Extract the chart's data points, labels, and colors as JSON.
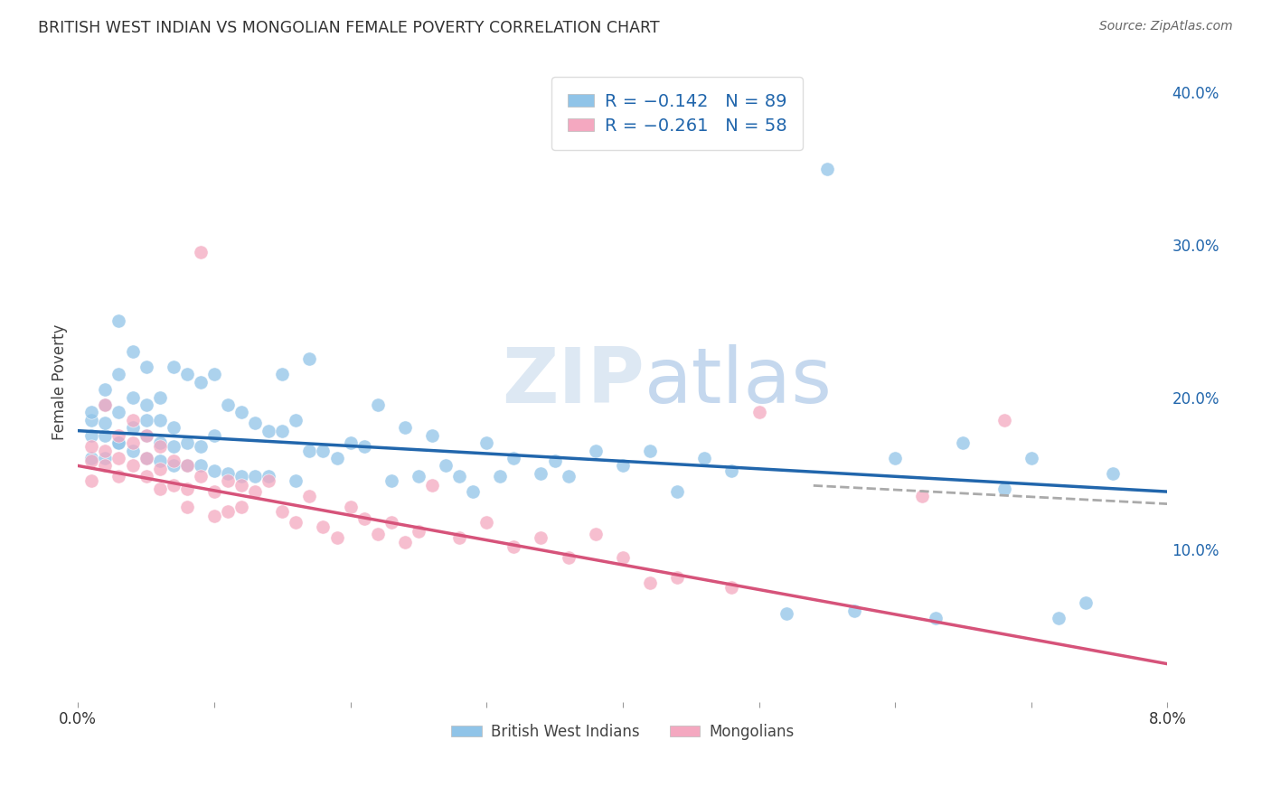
{
  "title": "BRITISH WEST INDIAN VS MONGOLIAN FEMALE POVERTY CORRELATION CHART",
  "source": "Source: ZipAtlas.com",
  "ylabel": "Female Poverty",
  "xlim": [
    0.0,
    0.08
  ],
  "ylim": [
    0.0,
    0.42
  ],
  "blue_color": "#90c4e8",
  "pink_color": "#f4a8c0",
  "blue_line_color": "#2166ac",
  "pink_line_color": "#d6537a",
  "dashed_line_color": "#aaaaaa",
  "watermark_zip": "ZIP",
  "watermark_atlas": "atlas",
  "blue_line_x": [
    0.0,
    0.08
  ],
  "blue_line_y": [
    0.178,
    0.138
  ],
  "pink_line_x": [
    0.0,
    0.08
  ],
  "pink_line_y": [
    0.155,
    0.025
  ],
  "dashed_line_x": [
    0.054,
    0.08
  ],
  "dashed_line_y": [
    0.142,
    0.13
  ],
  "blue_scatter_x": [
    0.001,
    0.001,
    0.001,
    0.001,
    0.002,
    0.002,
    0.002,
    0.002,
    0.002,
    0.003,
    0.003,
    0.003,
    0.003,
    0.003,
    0.004,
    0.004,
    0.004,
    0.004,
    0.005,
    0.005,
    0.005,
    0.005,
    0.005,
    0.006,
    0.006,
    0.006,
    0.006,
    0.007,
    0.007,
    0.007,
    0.007,
    0.008,
    0.008,
    0.008,
    0.009,
    0.009,
    0.009,
    0.01,
    0.01,
    0.01,
    0.011,
    0.011,
    0.012,
    0.012,
    0.013,
    0.013,
    0.014,
    0.014,
    0.015,
    0.015,
    0.016,
    0.016,
    0.017,
    0.017,
    0.018,
    0.019,
    0.02,
    0.021,
    0.022,
    0.023,
    0.024,
    0.025,
    0.026,
    0.027,
    0.028,
    0.029,
    0.03,
    0.031,
    0.032,
    0.034,
    0.035,
    0.036,
    0.038,
    0.04,
    0.042,
    0.044,
    0.046,
    0.048,
    0.052,
    0.055,
    0.057,
    0.06,
    0.063,
    0.065,
    0.068,
    0.07,
    0.072,
    0.074,
    0.076
  ],
  "blue_scatter_y": [
    0.175,
    0.185,
    0.19,
    0.16,
    0.175,
    0.183,
    0.195,
    0.16,
    0.205,
    0.17,
    0.19,
    0.215,
    0.17,
    0.25,
    0.165,
    0.18,
    0.2,
    0.23,
    0.16,
    0.175,
    0.185,
    0.195,
    0.22,
    0.158,
    0.17,
    0.185,
    0.2,
    0.155,
    0.168,
    0.18,
    0.22,
    0.155,
    0.17,
    0.215,
    0.155,
    0.168,
    0.21,
    0.152,
    0.175,
    0.215,
    0.15,
    0.195,
    0.148,
    0.19,
    0.148,
    0.183,
    0.148,
    0.178,
    0.178,
    0.215,
    0.145,
    0.185,
    0.165,
    0.225,
    0.165,
    0.16,
    0.17,
    0.168,
    0.195,
    0.145,
    0.18,
    0.148,
    0.175,
    0.155,
    0.148,
    0.138,
    0.17,
    0.148,
    0.16,
    0.15,
    0.158,
    0.148,
    0.165,
    0.155,
    0.165,
    0.138,
    0.16,
    0.152,
    0.058,
    0.35,
    0.06,
    0.16,
    0.055,
    0.17,
    0.14,
    0.16,
    0.055,
    0.065,
    0.15
  ],
  "pink_scatter_x": [
    0.001,
    0.001,
    0.001,
    0.002,
    0.002,
    0.002,
    0.003,
    0.003,
    0.003,
    0.004,
    0.004,
    0.004,
    0.005,
    0.005,
    0.005,
    0.006,
    0.006,
    0.006,
    0.007,
    0.007,
    0.008,
    0.008,
    0.008,
    0.009,
    0.009,
    0.01,
    0.01,
    0.011,
    0.011,
    0.012,
    0.012,
    0.013,
    0.014,
    0.015,
    0.016,
    0.017,
    0.018,
    0.019,
    0.02,
    0.021,
    0.022,
    0.023,
    0.024,
    0.025,
    0.026,
    0.028,
    0.03,
    0.032,
    0.034,
    0.036,
    0.038,
    0.04,
    0.042,
    0.044,
    0.048,
    0.05,
    0.062,
    0.068
  ],
  "pink_scatter_y": [
    0.168,
    0.158,
    0.145,
    0.195,
    0.165,
    0.155,
    0.175,
    0.16,
    0.148,
    0.185,
    0.17,
    0.155,
    0.175,
    0.16,
    0.148,
    0.168,
    0.153,
    0.14,
    0.158,
    0.142,
    0.155,
    0.14,
    0.128,
    0.148,
    0.295,
    0.138,
    0.122,
    0.145,
    0.125,
    0.142,
    0.128,
    0.138,
    0.145,
    0.125,
    0.118,
    0.135,
    0.115,
    0.108,
    0.128,
    0.12,
    0.11,
    0.118,
    0.105,
    0.112,
    0.142,
    0.108,
    0.118,
    0.102,
    0.108,
    0.095,
    0.11,
    0.095,
    0.078,
    0.082,
    0.075,
    0.19,
    0.135,
    0.185
  ]
}
